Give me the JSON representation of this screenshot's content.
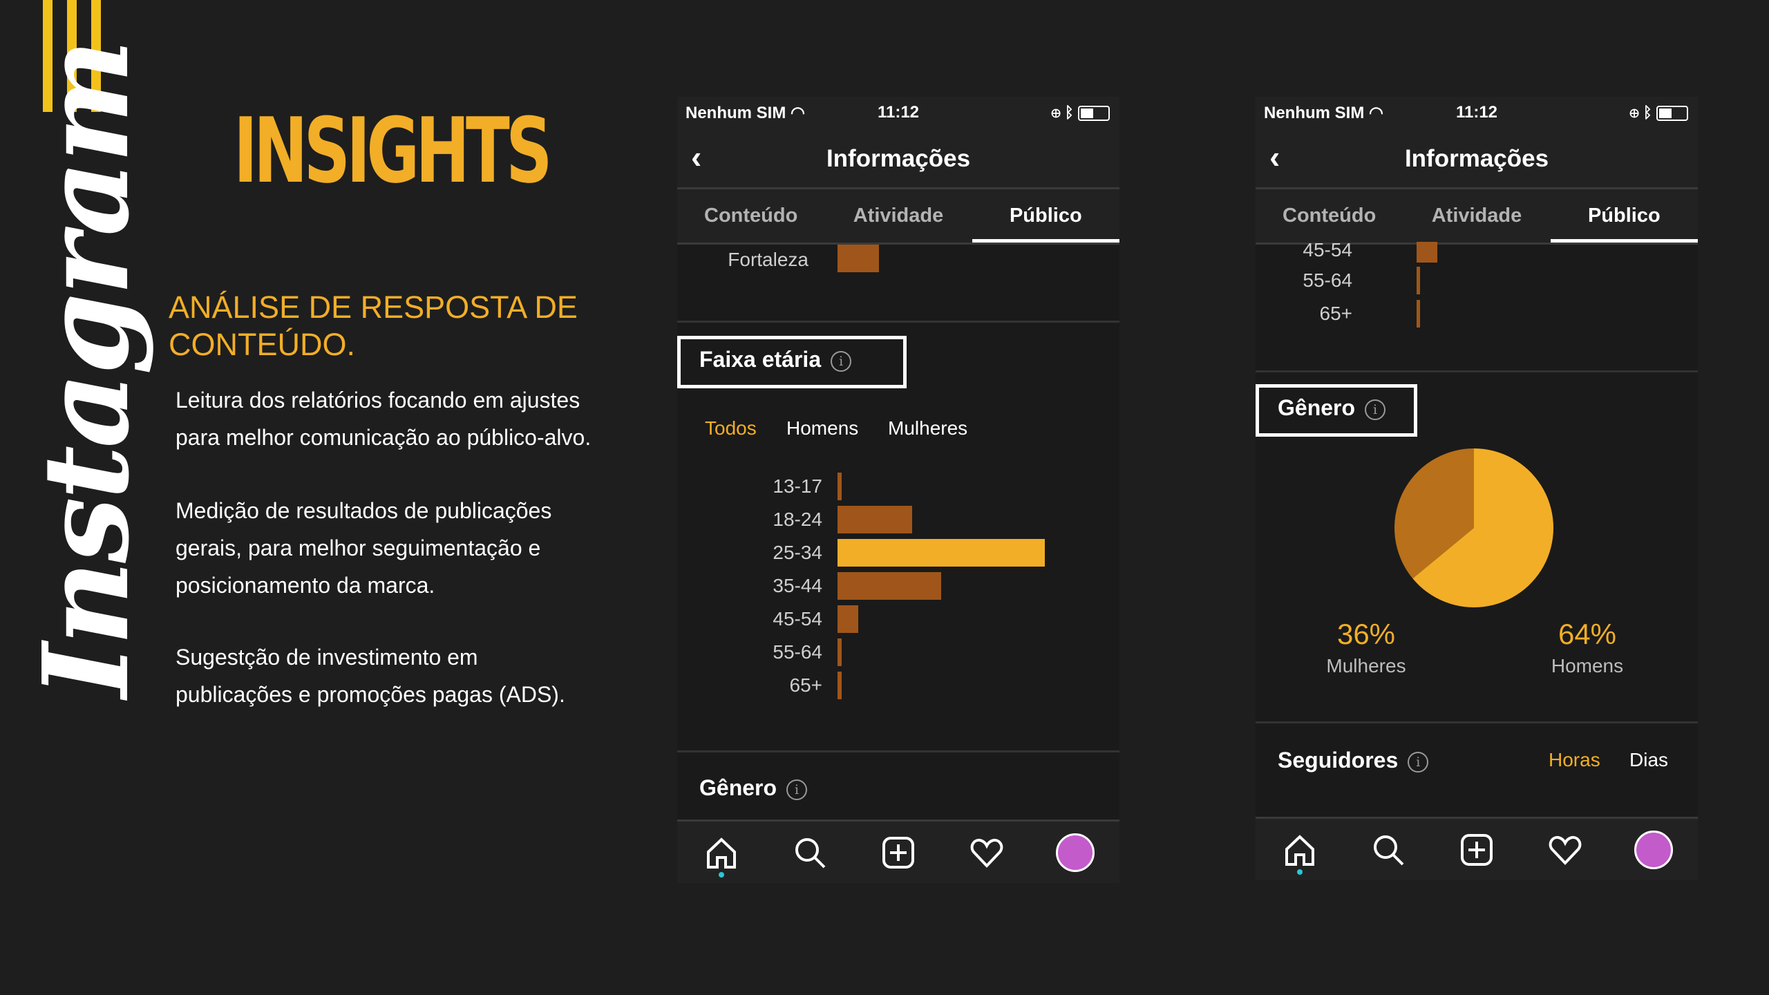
{
  "slide": {
    "title": "INSIGHTS",
    "vertical_brand": "Instagram",
    "subtitle": "ANÁLISE DE  RESPOSTA DE\nCONTEÚDO.",
    "paragraphs": [
      "Leitura  dos relatórios  focando em ajustes\npara  melhor comunicação ao público-alvo.",
      "Medição de resultados de publicações\ngerais,  para melhor seguimentação e\nposicionamento da marca.",
      "Sugestção de investimento em\npublicações e promoções pagas (ADS)."
    ],
    "accent_color": "#f2ae27"
  },
  "phone_left": {
    "status": {
      "carrier": "Nenhum SIM",
      "time": "11:12"
    },
    "nav_title": "Informações",
    "tabs": [
      "Conteúdo",
      "Atividade",
      "Público"
    ],
    "active_tab": "Público",
    "city_label": "Fortaleza",
    "age_section": {
      "title": "Faixa etária",
      "filters": [
        "Todos",
        "Homens",
        "Mulheres"
      ],
      "active_filter": "Todos",
      "labels": [
        "13-17",
        "18-24",
        "25-34",
        "35-44",
        "45-54",
        "55-64",
        "65+"
      ]
    },
    "gender_title": "Gênero"
  },
  "phone_right": {
    "status": {
      "carrier": "Nenhum SIM",
      "time": "11:12"
    },
    "nav_title": "Informações",
    "tabs": [
      "Conteúdo",
      "Atividade",
      "Público"
    ],
    "active_tab": "Público",
    "age_labels": [
      "45-54",
      "55-64",
      "65+"
    ],
    "gender_title": "Gênero",
    "women_pct": "36%",
    "women_label": "Mulheres",
    "men_pct": "64%",
    "men_label": "Homens",
    "followers_title": "Seguidores",
    "followers_filters": [
      "Horas",
      "Dias"
    ]
  },
  "chart_data": [
    {
      "type": "bar",
      "orientation": "horizontal",
      "title": "Faixa etária",
      "categories": [
        "13-17",
        "18-24",
        "25-34",
        "35-44",
        "45-54",
        "55-64",
        "65+"
      ],
      "values": [
        1,
        18,
        50,
        25,
        5,
        1,
        1
      ],
      "highlight_color": "#f2ae27",
      "bar_color": "#a0561a"
    },
    {
      "type": "pie",
      "title": "Gênero",
      "categories": [
        "Mulheres",
        "Homens"
      ],
      "values": [
        36,
        64
      ],
      "colors": [
        "#b8701a",
        "#f2ae27"
      ]
    }
  ]
}
